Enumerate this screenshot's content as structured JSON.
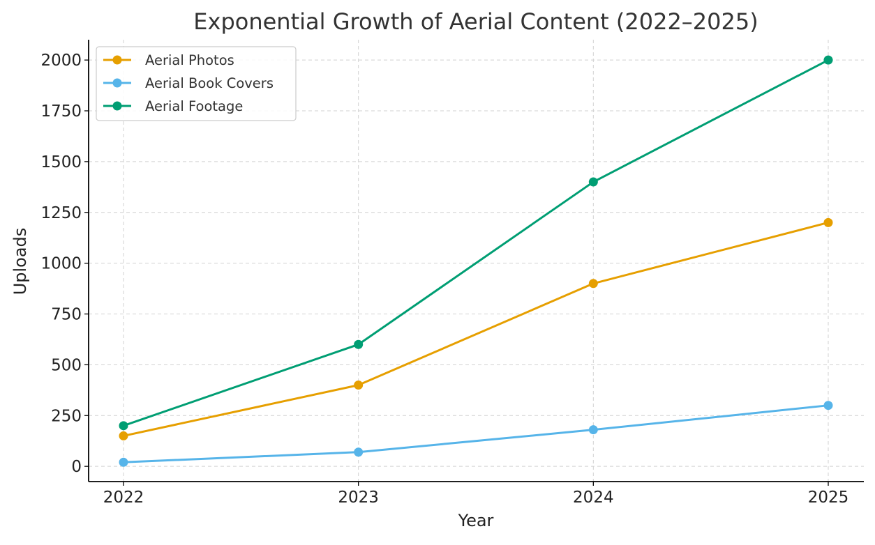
{
  "chart_data": {
    "type": "line",
    "title": "Exponential Growth of Aerial Content (2022–2025)",
    "xlabel": "Year",
    "ylabel": "Uploads",
    "categories": [
      "2022",
      "2023",
      "2024",
      "2025"
    ],
    "ylim": [
      -75,
      2100
    ],
    "yticks": [
      0,
      250,
      500,
      750,
      1000,
      1250,
      1500,
      1750,
      2000
    ],
    "ytick_labels": [
      "0",
      "250",
      "500",
      "750",
      "1000",
      "1250",
      "1500",
      "1750",
      "2000"
    ],
    "grid": true,
    "legend_position": "top-left",
    "series": [
      {
        "name": "Aerial Photos",
        "color": "#E69F00",
        "values": [
          150,
          400,
          900,
          1200
        ]
      },
      {
        "name": "Aerial Book Covers",
        "color": "#56B4E9",
        "values": [
          20,
          70,
          180,
          300
        ]
      },
      {
        "name": "Aerial Footage",
        "color": "#009E73",
        "values": [
          200,
          600,
          1400,
          2000
        ]
      }
    ]
  }
}
